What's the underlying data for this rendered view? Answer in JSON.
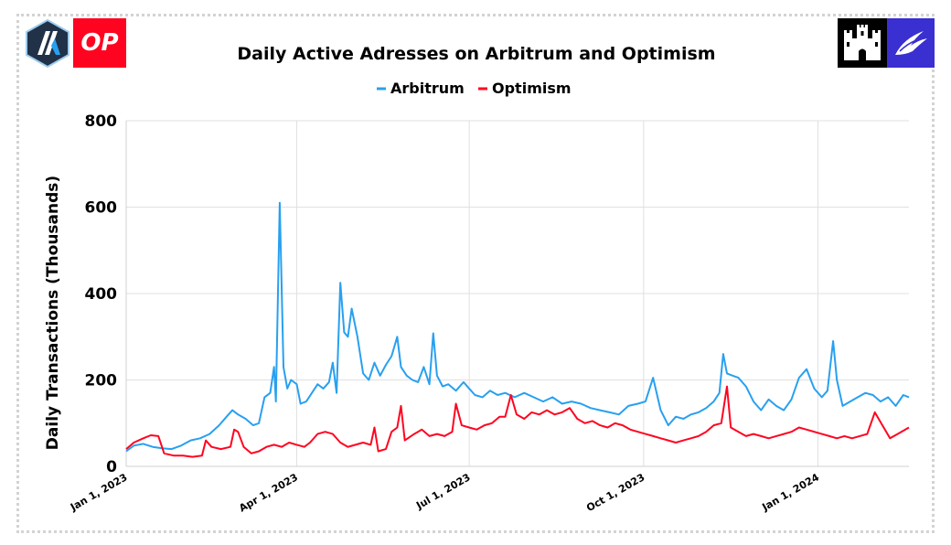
{
  "logos": {
    "arbitrum": "arbitrum-logo",
    "optimism_text": "OP",
    "castle": "castle-logo",
    "bird": "bird-logo"
  },
  "chart_data": {
    "type": "line",
    "title": "Daily Active Adresses on Arbitrum and Optimism",
    "xlabel": "",
    "ylabel": "Daily Transactions (Thousands)",
    "ylim": [
      0,
      800
    ],
    "yticks": [
      0,
      200,
      400,
      600,
      800
    ],
    "xticks": [
      "Jan 1, 2023",
      "Apr 1, 2023",
      "Jul 1, 2023",
      "Oct 1, 2023",
      "Jan 1, 2024"
    ],
    "grid": true,
    "legend_position": "top-center",
    "colors": {
      "arbitrum": "#28a0f0",
      "optimism": "#ff0420"
    },
    "series": [
      {
        "name": "Arbitrum",
        "color": "#28a0f0",
        "points": [
          [
            "2023-01-01",
            35
          ],
          [
            "2023-01-05",
            48
          ],
          [
            "2023-01-10",
            52
          ],
          [
            "2023-01-15",
            45
          ],
          [
            "2023-01-20",
            42
          ],
          [
            "2023-01-25",
            40
          ],
          [
            "2023-01-30",
            48
          ],
          [
            "2023-02-04",
            60
          ],
          [
            "2023-02-09",
            65
          ],
          [
            "2023-02-14",
            75
          ],
          [
            "2023-02-19",
            95
          ],
          [
            "2023-02-23",
            115
          ],
          [
            "2023-02-26",
            130
          ],
          [
            "2023-03-01",
            120
          ],
          [
            "2023-03-05",
            110
          ],
          [
            "2023-03-09",
            95
          ],
          [
            "2023-03-12",
            100
          ],
          [
            "2023-03-15",
            160
          ],
          [
            "2023-03-18",
            170
          ],
          [
            "2023-03-20",
            230
          ],
          [
            "2023-03-21",
            150
          ],
          [
            "2023-03-23",
            610
          ],
          [
            "2023-03-25",
            230
          ],
          [
            "2023-03-27",
            180
          ],
          [
            "2023-03-29",
            200
          ],
          [
            "2023-04-01",
            190
          ],
          [
            "2023-04-03",
            145
          ],
          [
            "2023-04-06",
            150
          ],
          [
            "2023-04-09",
            170
          ],
          [
            "2023-04-12",
            190
          ],
          [
            "2023-04-15",
            180
          ],
          [
            "2023-04-18",
            195
          ],
          [
            "2023-04-20",
            240
          ],
          [
            "2023-04-22",
            170
          ],
          [
            "2023-04-24",
            425
          ],
          [
            "2023-04-26",
            310
          ],
          [
            "2023-04-28",
            300
          ],
          [
            "2023-04-30",
            365
          ],
          [
            "2023-05-03",
            300
          ],
          [
            "2023-05-06",
            215
          ],
          [
            "2023-05-09",
            200
          ],
          [
            "2023-05-12",
            240
          ],
          [
            "2023-05-15",
            210
          ],
          [
            "2023-05-18",
            235
          ],
          [
            "2023-05-21",
            255
          ],
          [
            "2023-05-24",
            300
          ],
          [
            "2023-05-26",
            230
          ],
          [
            "2023-05-29",
            210
          ],
          [
            "2023-06-01",
            200
          ],
          [
            "2023-06-04",
            195
          ],
          [
            "2023-06-07",
            230
          ],
          [
            "2023-06-10",
            190
          ],
          [
            "2023-06-12",
            308
          ],
          [
            "2023-06-14",
            210
          ],
          [
            "2023-06-17",
            185
          ],
          [
            "2023-06-20",
            190
          ],
          [
            "2023-06-24",
            175
          ],
          [
            "2023-06-28",
            195
          ],
          [
            "2023-07-01",
            180
          ],
          [
            "2023-07-04",
            165
          ],
          [
            "2023-07-08",
            160
          ],
          [
            "2023-07-12",
            175
          ],
          [
            "2023-07-16",
            165
          ],
          [
            "2023-07-20",
            170
          ],
          [
            "2023-07-25",
            160
          ],
          [
            "2023-07-30",
            170
          ],
          [
            "2023-08-04",
            160
          ],
          [
            "2023-08-09",
            150
          ],
          [
            "2023-08-14",
            160
          ],
          [
            "2023-08-19",
            145
          ],
          [
            "2023-08-24",
            150
          ],
          [
            "2023-08-29",
            145
          ],
          [
            "2023-09-03",
            135
          ],
          [
            "2023-09-08",
            130
          ],
          [
            "2023-09-13",
            125
          ],
          [
            "2023-09-18",
            120
          ],
          [
            "2023-09-23",
            140
          ],
          [
            "2023-09-28",
            145
          ],
          [
            "2023-10-02",
            150
          ],
          [
            "2023-10-06",
            205
          ],
          [
            "2023-10-10",
            130
          ],
          [
            "2023-10-14",
            95
          ],
          [
            "2023-10-18",
            115
          ],
          [
            "2023-10-22",
            110
          ],
          [
            "2023-10-26",
            120
          ],
          [
            "2023-10-30",
            125
          ],
          [
            "2023-11-03",
            135
          ],
          [
            "2023-11-07",
            150
          ],
          [
            "2023-11-10",
            170
          ],
          [
            "2023-11-12",
            260
          ],
          [
            "2023-11-14",
            215
          ],
          [
            "2023-11-17",
            210
          ],
          [
            "2023-11-20",
            205
          ],
          [
            "2023-11-24",
            185
          ],
          [
            "2023-11-28",
            150
          ],
          [
            "2023-12-02",
            130
          ],
          [
            "2023-12-06",
            155
          ],
          [
            "2023-12-10",
            140
          ],
          [
            "2023-12-14",
            130
          ],
          [
            "2023-12-18",
            155
          ],
          [
            "2023-12-22",
            205
          ],
          [
            "2023-12-26",
            225
          ],
          [
            "2023-12-30",
            180
          ],
          [
            "2024-01-03",
            160
          ],
          [
            "2024-01-06",
            175
          ],
          [
            "2024-01-09",
            290
          ],
          [
            "2024-01-11",
            200
          ],
          [
            "2024-01-14",
            140
          ],
          [
            "2024-01-18",
            150
          ],
          [
            "2024-01-22",
            160
          ],
          [
            "2024-01-26",
            170
          ],
          [
            "2024-01-30",
            165
          ],
          [
            "2024-02-03",
            150
          ],
          [
            "2024-02-07",
            160
          ],
          [
            "2024-02-11",
            140
          ],
          [
            "2024-02-15",
            165
          ],
          [
            "2024-02-18",
            160
          ]
        ]
      },
      {
        "name": "Optimism",
        "color": "#ff0420",
        "points": [
          [
            "2023-01-01",
            40
          ],
          [
            "2023-01-05",
            55
          ],
          [
            "2023-01-10",
            65
          ],
          [
            "2023-01-14",
            72
          ],
          [
            "2023-01-18",
            70
          ],
          [
            "2023-01-21",
            30
          ],
          [
            "2023-01-26",
            25
          ],
          [
            "2023-01-31",
            25
          ],
          [
            "2023-02-05",
            22
          ],
          [
            "2023-02-10",
            25
          ],
          [
            "2023-02-12",
            60
          ],
          [
            "2023-02-15",
            45
          ],
          [
            "2023-02-20",
            40
          ],
          [
            "2023-02-25",
            45
          ],
          [
            "2023-02-27",
            85
          ],
          [
            "2023-03-01",
            80
          ],
          [
            "2023-03-04",
            45
          ],
          [
            "2023-03-08",
            30
          ],
          [
            "2023-03-12",
            35
          ],
          [
            "2023-03-16",
            45
          ],
          [
            "2023-03-20",
            50
          ],
          [
            "2023-03-24",
            45
          ],
          [
            "2023-03-28",
            55
          ],
          [
            "2023-04-01",
            50
          ],
          [
            "2023-04-05",
            45
          ],
          [
            "2023-04-08",
            55
          ],
          [
            "2023-04-12",
            75
          ],
          [
            "2023-04-16",
            80
          ],
          [
            "2023-04-20",
            75
          ],
          [
            "2023-04-24",
            55
          ],
          [
            "2023-04-28",
            45
          ],
          [
            "2023-05-02",
            50
          ],
          [
            "2023-05-06",
            55
          ],
          [
            "2023-05-10",
            50
          ],
          [
            "2023-05-12",
            90
          ],
          [
            "2023-05-14",
            35
          ],
          [
            "2023-05-18",
            40
          ],
          [
            "2023-05-21",
            80
          ],
          [
            "2023-05-24",
            90
          ],
          [
            "2023-05-26",
            140
          ],
          [
            "2023-05-28",
            60
          ],
          [
            "2023-06-02",
            75
          ],
          [
            "2023-06-06",
            85
          ],
          [
            "2023-06-10",
            70
          ],
          [
            "2023-06-14",
            75
          ],
          [
            "2023-06-18",
            70
          ],
          [
            "2023-06-22",
            80
          ],
          [
            "2023-06-24",
            145
          ],
          [
            "2023-06-27",
            95
          ],
          [
            "2023-07-01",
            90
          ],
          [
            "2023-07-05",
            85
          ],
          [
            "2023-07-09",
            95
          ],
          [
            "2023-07-13",
            100
          ],
          [
            "2023-07-17",
            115
          ],
          [
            "2023-07-20",
            115
          ],
          [
            "2023-07-23",
            165
          ],
          [
            "2023-07-26",
            120
          ],
          [
            "2023-07-30",
            110
          ],
          [
            "2023-08-03",
            125
          ],
          [
            "2023-08-07",
            120
          ],
          [
            "2023-08-11",
            130
          ],
          [
            "2023-08-15",
            120
          ],
          [
            "2023-08-19",
            125
          ],
          [
            "2023-08-23",
            135
          ],
          [
            "2023-08-27",
            110
          ],
          [
            "2023-08-31",
            100
          ],
          [
            "2023-09-04",
            105
          ],
          [
            "2023-09-08",
            95
          ],
          [
            "2023-09-12",
            90
          ],
          [
            "2023-09-16",
            100
          ],
          [
            "2023-09-20",
            95
          ],
          [
            "2023-09-24",
            85
          ],
          [
            "2023-09-28",
            80
          ],
          [
            "2023-10-02",
            75
          ],
          [
            "2023-10-06",
            70
          ],
          [
            "2023-10-10",
            65
          ],
          [
            "2023-10-14",
            60
          ],
          [
            "2023-10-18",
            55
          ],
          [
            "2023-10-22",
            60
          ],
          [
            "2023-10-26",
            65
          ],
          [
            "2023-10-30",
            70
          ],
          [
            "2023-11-03",
            80
          ],
          [
            "2023-11-07",
            95
          ],
          [
            "2023-11-11",
            100
          ],
          [
            "2023-11-14",
            185
          ],
          [
            "2023-11-16",
            90
          ],
          [
            "2023-11-20",
            80
          ],
          [
            "2023-11-24",
            70
          ],
          [
            "2023-11-28",
            75
          ],
          [
            "2023-12-02",
            70
          ],
          [
            "2023-12-06",
            65
          ],
          [
            "2023-12-10",
            70
          ],
          [
            "2023-12-14",
            75
          ],
          [
            "2023-12-18",
            80
          ],
          [
            "2023-12-22",
            90
          ],
          [
            "2023-12-26",
            85
          ],
          [
            "2023-12-30",
            80
          ],
          [
            "2024-01-03",
            75
          ],
          [
            "2024-01-07",
            70
          ],
          [
            "2024-01-11",
            65
          ],
          [
            "2024-01-15",
            70
          ],
          [
            "2024-01-19",
            65
          ],
          [
            "2024-01-23",
            70
          ],
          [
            "2024-01-27",
            75
          ],
          [
            "2024-01-31",
            125
          ],
          [
            "2024-02-04",
            95
          ],
          [
            "2024-02-08",
            65
          ],
          [
            "2024-02-12",
            75
          ],
          [
            "2024-02-18",
            90
          ]
        ]
      }
    ]
  }
}
